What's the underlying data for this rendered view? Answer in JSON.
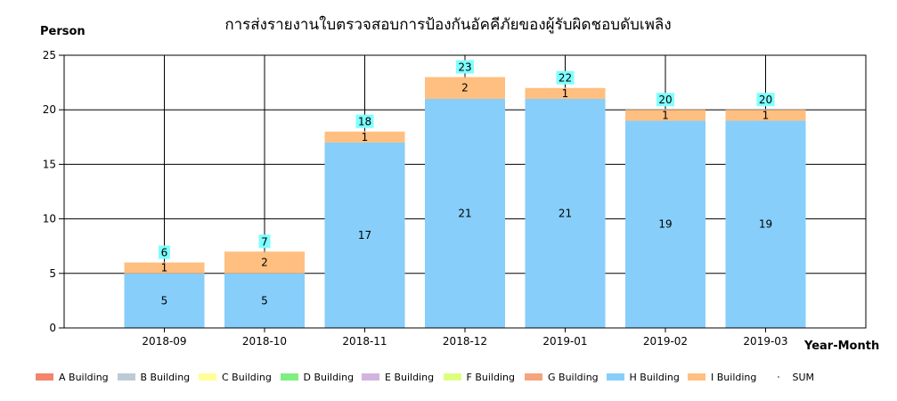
{
  "chart_data": {
    "type": "bar",
    "stacked": true,
    "title": "การส่งรายงานใบตรวจสอบการป้องกันอัคคีภัยของผู้รับผิดชอบดับเพลิง",
    "ylabel": "Person",
    "xlabel": "Year-Month",
    "ylim": [
      0,
      25
    ],
    "yticks": [
      0,
      5,
      10,
      15,
      20,
      25
    ],
    "grid": true,
    "legend_position": "bottom",
    "categories": [
      "2018-09",
      "2018-10",
      "2018-11",
      "2018-12",
      "2019-01",
      "2019-02",
      "2019-03"
    ],
    "series": [
      {
        "name": "A Building",
        "color": "#F4846C",
        "values": [
          0,
          0,
          0,
          0,
          0,
          0,
          0
        ]
      },
      {
        "name": "B Building",
        "color": "#BCCAD6",
        "values": [
          0,
          0,
          0,
          0,
          0,
          0,
          0
        ]
      },
      {
        "name": "C Building",
        "color": "#FFFF99",
        "values": [
          0,
          0,
          0,
          0,
          0,
          0,
          0
        ]
      },
      {
        "name": "D Building",
        "color": "#80EE80",
        "values": [
          0,
          0,
          0,
          0,
          0,
          0,
          0
        ]
      },
      {
        "name": "E Building",
        "color": "#D2B4E0",
        "values": [
          0,
          0,
          0,
          0,
          0,
          0,
          0
        ]
      },
      {
        "name": "F Building",
        "color": "#DDFF80",
        "values": [
          0,
          0,
          0,
          0,
          0,
          0,
          0
        ]
      },
      {
        "name": "G Building",
        "color": "#F5A47E",
        "values": [
          0,
          0,
          0,
          0,
          0,
          0,
          0
        ]
      },
      {
        "name": "H Building",
        "color": "#87CEFA",
        "values": [
          5,
          5,
          17,
          21,
          21,
          19,
          19
        ]
      },
      {
        "name": "I Building",
        "color": "#FFBF80",
        "values": [
          1,
          2,
          1,
          2,
          1,
          1,
          1
        ]
      },
      {
        "name": "SUM",
        "color": "#999999",
        "values": [
          6,
          7,
          18,
          23,
          22,
          20,
          20
        ]
      }
    ],
    "sum_label_bg": "#7FFFFF"
  }
}
